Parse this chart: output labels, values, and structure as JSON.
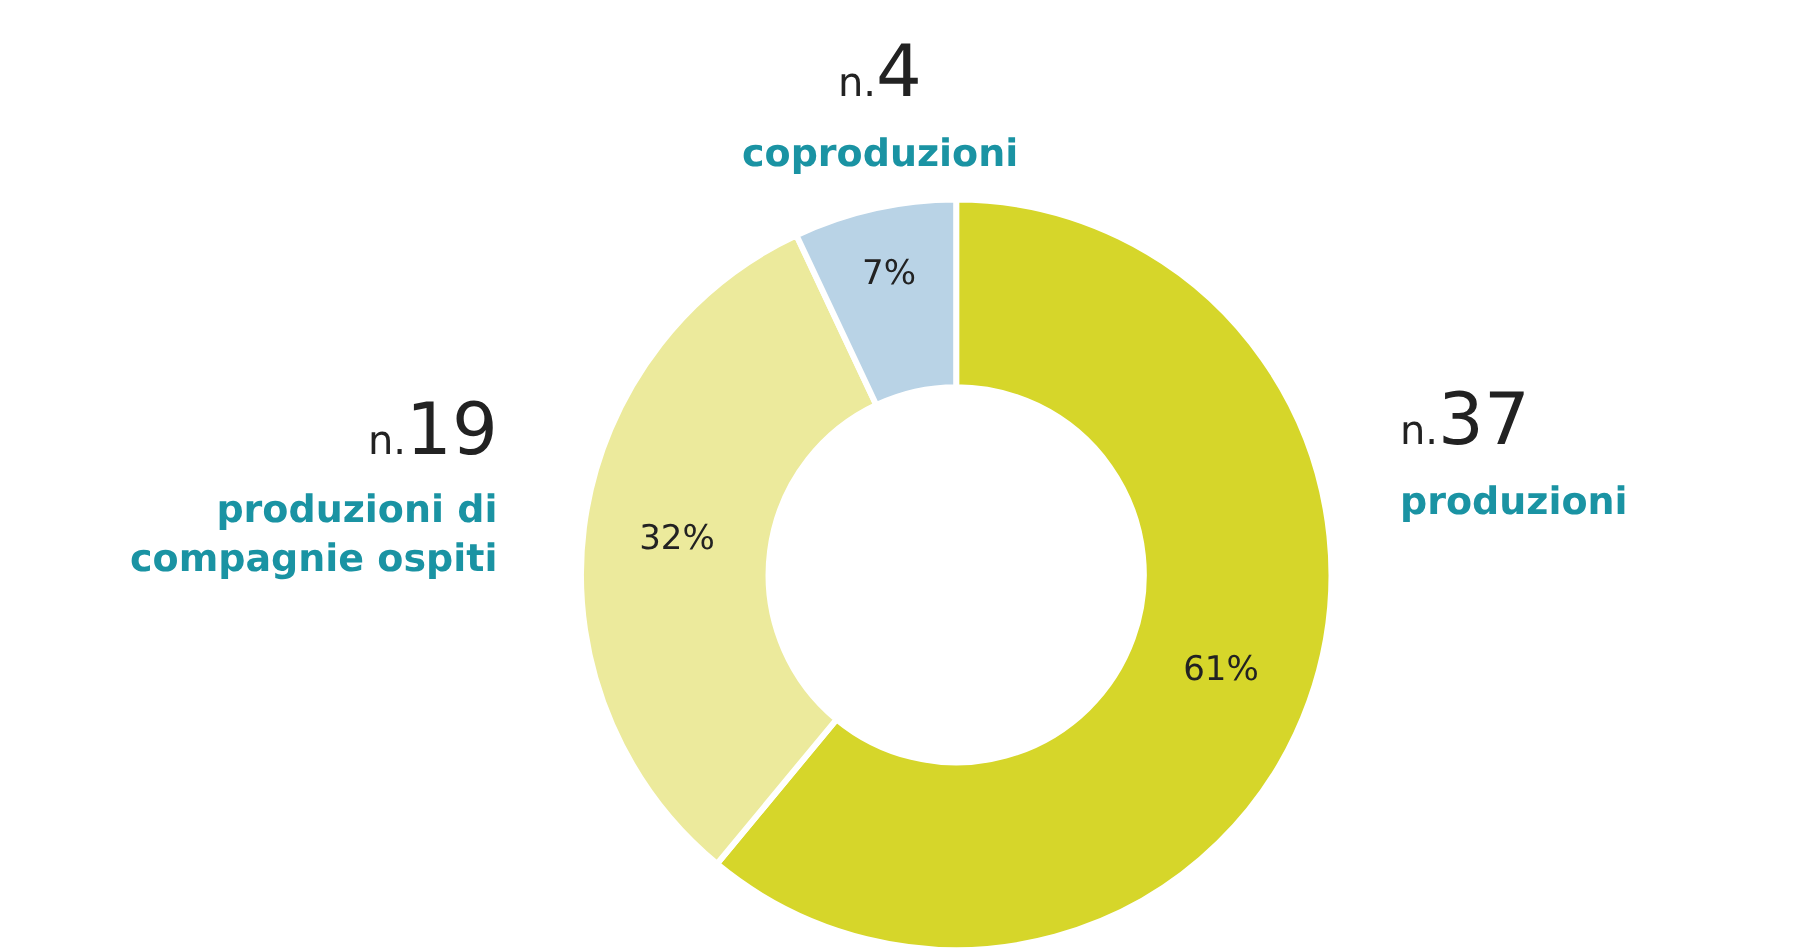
{
  "chart_data": {
    "type": "donut",
    "categories": [
      "produzioni",
      "produzioni di compagnie ospiti",
      "coproduzioni"
    ],
    "values": [
      61,
      32,
      7
    ],
    "value_labels": [
      "61%",
      "32%",
      "7%"
    ],
    "colors": [
      "#d6d62a",
      "#ecea9c",
      "#b9d3e6"
    ],
    "annotations": [
      "n.37",
      "n.19",
      "n.4"
    ],
    "legend": false
  }
}
